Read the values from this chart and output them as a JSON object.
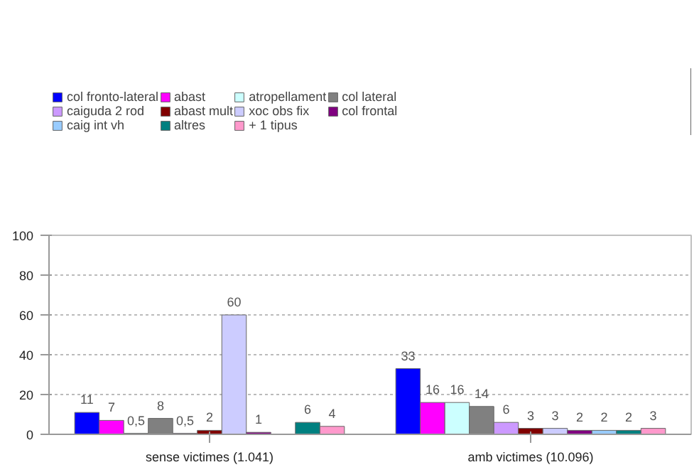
{
  "chart_data": {
    "type": "bar",
    "categories": [
      "sense victimes (1.041)",
      "amb victimes (10.096)"
    ],
    "series": [
      {
        "name": "col fronto-lateral",
        "color": "#0000ff",
        "values": [
          11,
          33
        ],
        "value_labels": [
          "11",
          "33"
        ]
      },
      {
        "name": "abast",
        "color": "#ff00ff",
        "values": [
          7,
          16
        ],
        "value_labels": [
          "7",
          "16"
        ]
      },
      {
        "name": "atropellament",
        "color": "#ccffff",
        "values": [
          0.5,
          16
        ],
        "value_labels": [
          "0,5",
          "16"
        ]
      },
      {
        "name": "col lateral",
        "color": "#808080",
        "values": [
          8,
          14
        ],
        "value_labels": [
          "8",
          "14"
        ]
      },
      {
        "name": "caiguda 2 rod",
        "color": "#cc99ff",
        "values": [
          0.5,
          6
        ],
        "value_labels": [
          "0,5",
          "6"
        ]
      },
      {
        "name": "abast mult",
        "color": "#800000",
        "values": [
          2,
          3
        ],
        "value_labels": [
          "2",
          "3"
        ]
      },
      {
        "name": "xoc obs fix",
        "color": "#ccccff",
        "values": [
          60,
          3
        ],
        "value_labels": [
          "60",
          "3"
        ]
      },
      {
        "name": "col frontal",
        "color": "#800080",
        "values": [
          1,
          2
        ],
        "value_labels": [
          "1",
          "2"
        ]
      },
      {
        "name": "caig int vh",
        "color": "#99ccff",
        "values": [
          null,
          2
        ],
        "value_labels": [
          null,
          "2"
        ]
      },
      {
        "name": "altres",
        "color": "#008080",
        "values": [
          6,
          2
        ],
        "value_labels": [
          "6",
          "2"
        ]
      },
      {
        "name": "+ 1 tipus",
        "color": "#ff99cc",
        "values": [
          4,
          3
        ],
        "value_labels": [
          "4",
          "3"
        ]
      }
    ],
    "ylim": [
      0,
      100
    ],
    "yticks": [
      0,
      20,
      40,
      60,
      80,
      100
    ],
    "grid": "y",
    "legend": "top"
  }
}
